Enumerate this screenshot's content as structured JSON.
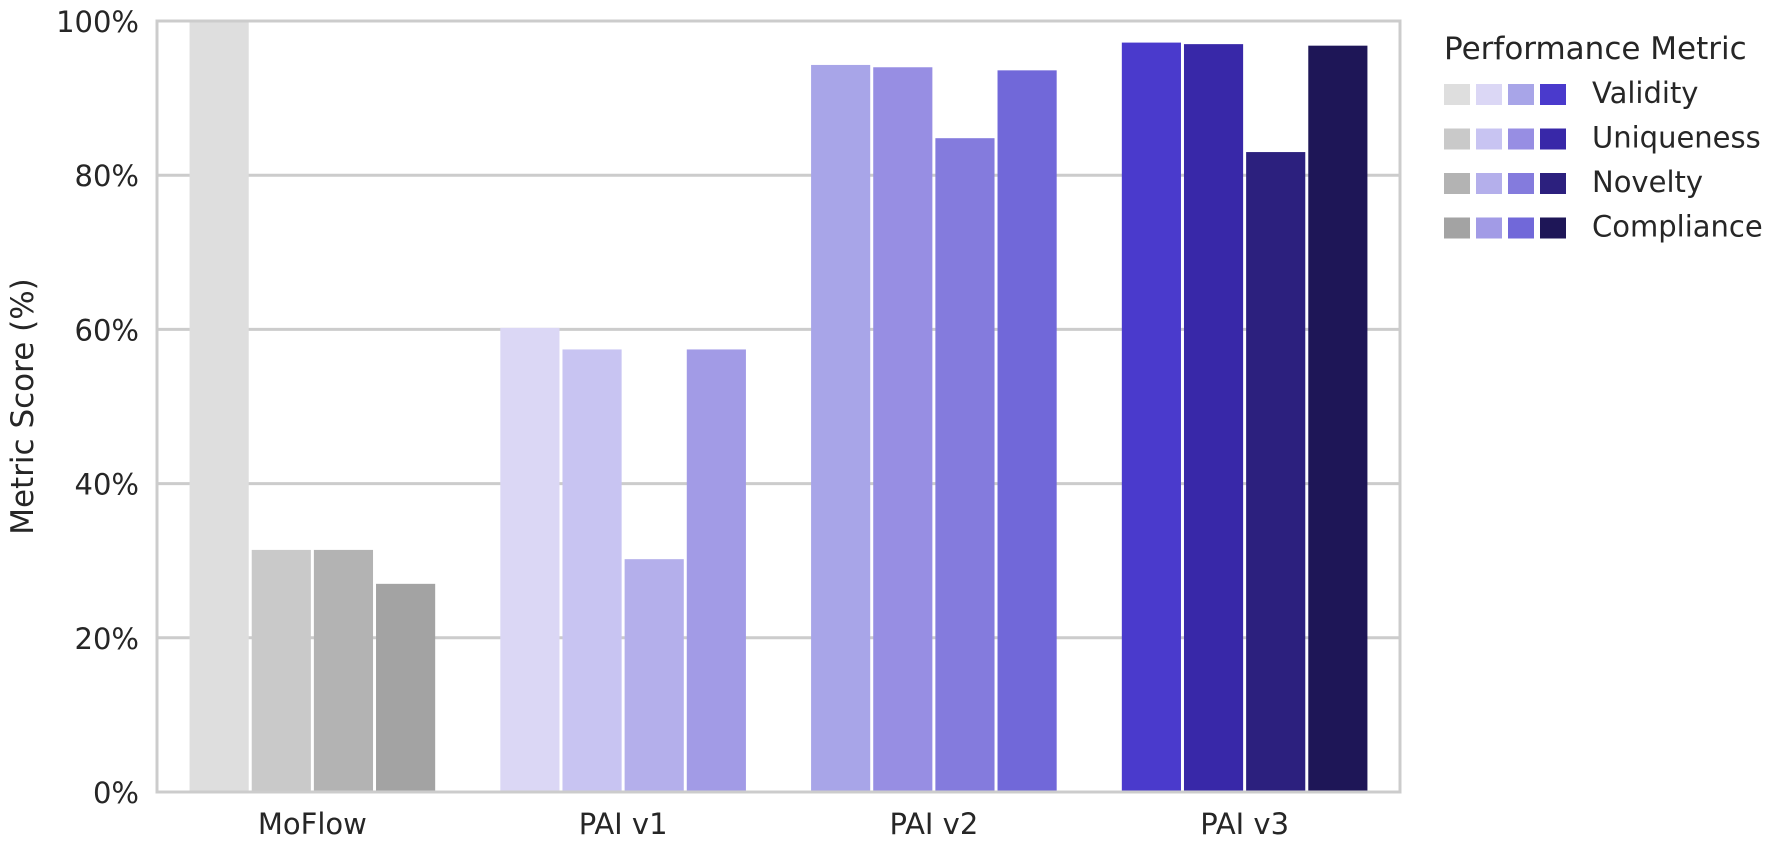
{
  "chart_data": {
    "type": "bar",
    "title": "",
    "xlabel": "",
    "ylabel": "Metric Score (%)",
    "ylim": [
      0,
      100
    ],
    "yticks": [
      "0%",
      "20%",
      "40%",
      "60%",
      "80%",
      "100%"
    ],
    "categories": [
      "MoFlow",
      "PAI v1",
      "PAI v2",
      "PAI v3"
    ],
    "grid": true,
    "legend": {
      "title": "Performance Metric",
      "placement": "outside-right",
      "entries": [
        "Validity",
        "Uniqueness",
        "Novelty",
        "Compliance"
      ]
    },
    "series": [
      {
        "name": "Validity",
        "values": [
          100,
          60.2,
          94.3,
          97.2
        ],
        "colors": [
          "#dedede",
          "#dbd7f5",
          "#a8a5e8",
          "#4a3acc"
        ]
      },
      {
        "name": "Uniqueness",
        "values": [
          31.4,
          57.4,
          94.0,
          97.0
        ],
        "colors": [
          "#c9c9c9",
          "#c8c4f2",
          "#978ee3",
          "#3828a8"
        ]
      },
      {
        "name": "Novelty",
        "values": [
          31.4,
          30.2,
          84.8,
          83.0
        ],
        "colors": [
          "#b3b3b3",
          "#b4afeb",
          "#847bdd",
          "#2c207e"
        ]
      },
      {
        "name": "Compliance",
        "values": [
          27.0,
          57.4,
          93.6,
          96.8
        ],
        "colors": [
          "#a3a3a3",
          "#a29be6",
          "#7168d9",
          "#1e1657"
        ]
      }
    ]
  },
  "colors": {
    "grid": "#cccccc",
    "frame": "#cccccc",
    "text": "#262626"
  }
}
